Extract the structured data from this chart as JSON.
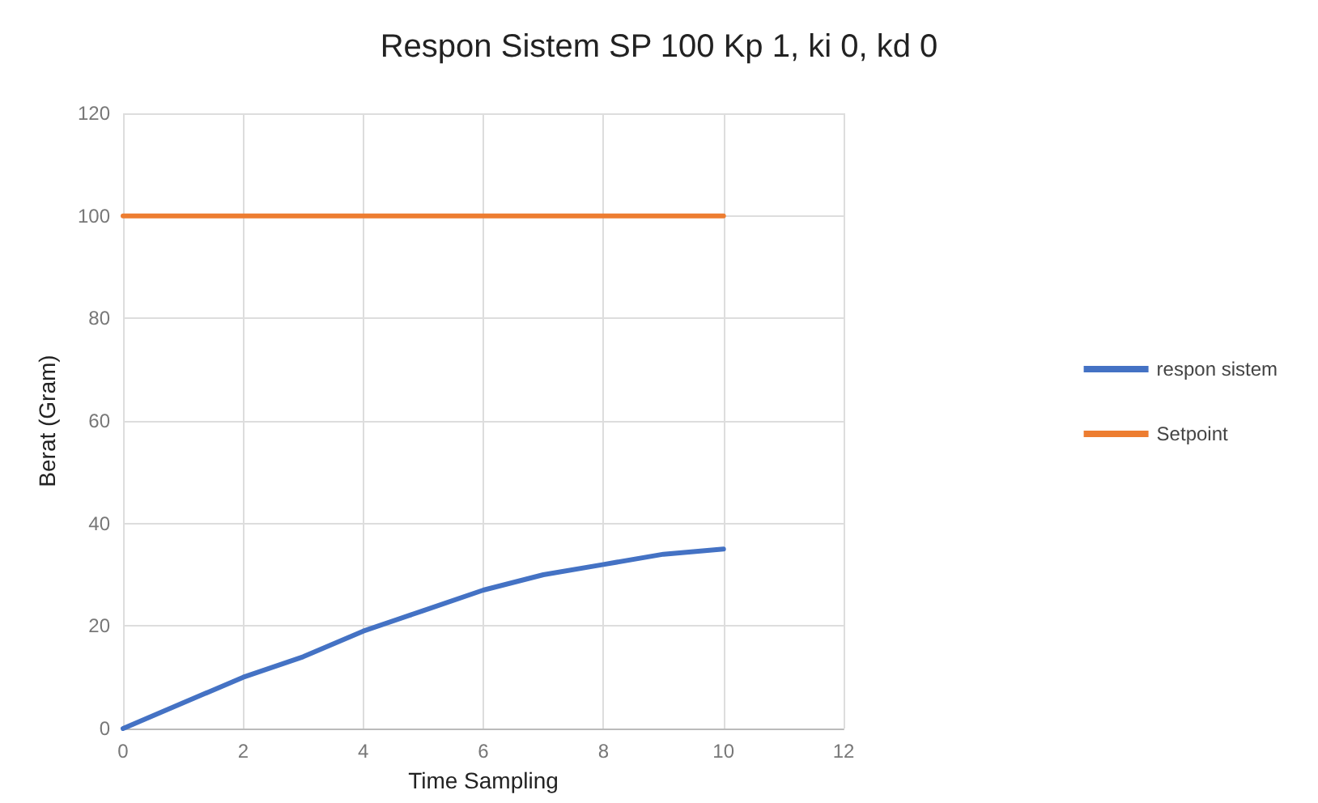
{
  "chart_data": {
    "type": "line",
    "title": "Respon Sistem SP 100 Kp 1, ki 0, kd 0",
    "xlabel": "Time Sampling",
    "ylabel": "Berat (Gram)",
    "series": [
      {
        "name": "respon sistem",
        "color": "#4472c4",
        "x": [
          0,
          1,
          2,
          3,
          4,
          5,
          6,
          7,
          8,
          9,
          10
        ],
        "values": [
          0,
          5,
          10,
          14,
          19,
          23,
          27,
          30,
          32,
          34,
          35
        ]
      },
      {
        "name": "Setpoint",
        "color": "#ed7d31",
        "x": [
          0,
          1,
          2,
          3,
          4,
          5,
          6,
          7,
          8,
          9,
          10
        ],
        "values": [
          100,
          100,
          100,
          100,
          100,
          100,
          100,
          100,
          100,
          100,
          100
        ]
      }
    ],
    "xlim": [
      0,
      12
    ],
    "xticks": [
      0,
      2,
      4,
      6,
      8,
      10,
      12
    ],
    "ylim": [
      0,
      120
    ],
    "yticks": [
      0,
      20,
      40,
      60,
      80,
      100,
      120
    ],
    "grid": true,
    "legend": "right",
    "marker": "none",
    "line_style": "solid"
  }
}
